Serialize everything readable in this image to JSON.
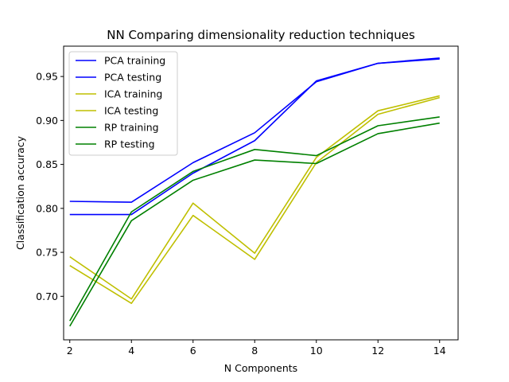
{
  "chart_data": {
    "type": "line",
    "title": "NN Comparing dimensionality reduction techniques",
    "xlabel": "N Components",
    "ylabel": "Classification accuracy",
    "x": [
      2,
      4,
      6,
      8,
      10,
      12,
      14
    ],
    "xlim": [
      1.8,
      14.6
    ],
    "ylim": [
      0.6505,
      0.9845
    ],
    "xticks": [
      "2",
      "4",
      "6",
      "8",
      "10",
      "12",
      "14"
    ],
    "xtick_values": [
      2,
      4,
      6,
      8,
      10,
      12,
      14
    ],
    "yticks": [
      "0.70",
      "0.75",
      "0.80",
      "0.85",
      "0.90",
      "0.95"
    ],
    "ytick_values": [
      0.7,
      0.75,
      0.8,
      0.85,
      0.9,
      0.95
    ],
    "grid": false,
    "legend_position": "upper-left",
    "series": [
      {
        "name": "PCA training",
        "color": "#0000ff",
        "values": [
          0.808,
          0.807,
          0.852,
          0.886,
          0.944,
          0.965,
          0.97
        ]
      },
      {
        "name": "PCA testing",
        "color": "#0000ff",
        "values": [
          0.793,
          0.793,
          0.84,
          0.877,
          0.945,
          0.965,
          0.971
        ]
      },
      {
        "name": "ICA training",
        "color": "#bfbf00",
        "values": [
          0.745,
          0.697,
          0.806,
          0.749,
          0.858,
          0.911,
          0.928
        ]
      },
      {
        "name": "ICA testing",
        "color": "#bfbf00",
        "values": [
          0.735,
          0.692,
          0.792,
          0.742,
          0.852,
          0.907,
          0.926
        ]
      },
      {
        "name": "RP training",
        "color": "#008000",
        "values": [
          0.672,
          0.796,
          0.842,
          0.867,
          0.86,
          0.894,
          0.904
        ]
      },
      {
        "name": "RP testing",
        "color": "#008000",
        "values": [
          0.666,
          0.786,
          0.832,
          0.855,
          0.851,
          0.885,
          0.897
        ]
      }
    ]
  }
}
